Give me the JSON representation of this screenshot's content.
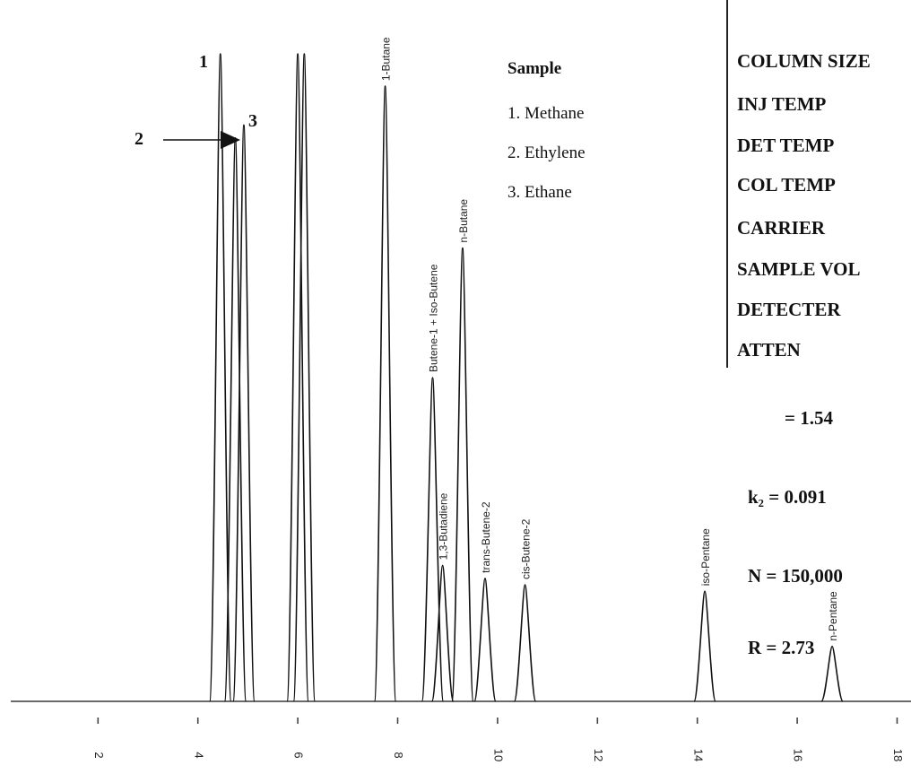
{
  "chart_data": {
    "type": "line",
    "title": "",
    "xlabel": "",
    "ylabel": "",
    "xlim": [
      0,
      19
    ],
    "ylim": [
      0,
      100
    ],
    "x_ticks": [
      2,
      4,
      6,
      8,
      10,
      12,
      14,
      16,
      18
    ],
    "grid": false,
    "baseline": 0,
    "peaks": [
      {
        "x": 4.45,
        "height": 100,
        "label": ""
      },
      {
        "x": 4.75,
        "height": 87,
        "label": ""
      },
      {
        "x": 4.92,
        "height": 89,
        "label": ""
      },
      {
        "x": 6.0,
        "height": 100,
        "label": ""
      },
      {
        "x": 6.13,
        "height": 100,
        "label": ""
      },
      {
        "x": 7.75,
        "height": 95,
        "label": "1-Butane"
      },
      {
        "x": 8.7,
        "height": 50,
        "label": "Butene-1 + Iso-Butene"
      },
      {
        "x": 8.9,
        "height": 21,
        "label": "1,3-Butadiene"
      },
      {
        "x": 9.3,
        "height": 70,
        "label": "n-Butane"
      },
      {
        "x": 9.75,
        "height": 19,
        "label": "trans-Butene-2"
      },
      {
        "x": 10.55,
        "height": 18,
        "label": "cis-Butene-2"
      },
      {
        "x": 14.15,
        "height": 17,
        "label": "iso-Pentane"
      },
      {
        "x": 16.7,
        "height": 8.5,
        "label": "n-Pentane"
      }
    ]
  },
  "annotations": {
    "peak_1": "1",
    "peak_2": "2",
    "peak_3": "3"
  },
  "sample": {
    "title": "Sample",
    "items": [
      "1. Methane",
      "2. Ethylene",
      "3. Ethane"
    ]
  },
  "conditions": [
    "COLUMN SIZE",
    "INJ TEMP",
    "DET TEMP",
    "COL TEMP",
    "CARRIER",
    "SAMPLE VOL",
    "DETECTER",
    "ATTEN"
  ],
  "stats": {
    "alpha": "= 1.54",
    "k2": "k₂ = 0.091",
    "n": "N = 150,000",
    "r": "R = 2.73"
  }
}
